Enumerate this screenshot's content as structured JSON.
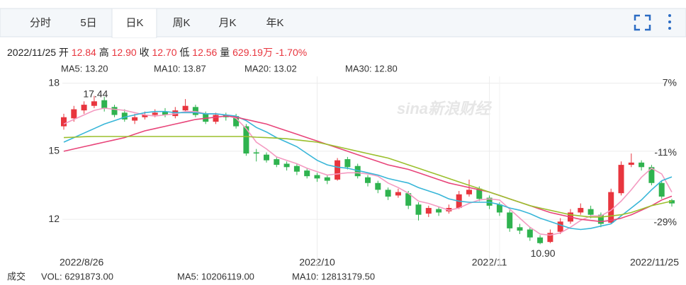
{
  "tabs": [
    "分时",
    "5日",
    "日K",
    "周K",
    "月K",
    "年K"
  ],
  "info": {
    "date": "2022/11/25",
    "items": [
      {
        "label": "开",
        "value": "12.84"
      },
      {
        "label": "高",
        "value": "12.90"
      },
      {
        "label": "收",
        "value": "12.70"
      },
      {
        "label": "低",
        "value": "12.56"
      },
      {
        "label": "量",
        "value": "629.19万"
      }
    ],
    "change": "-1.70%"
  },
  "watermark": "sina新浪财经",
  "footer": [
    {
      "text": "成交",
      "color": "#999999"
    },
    {
      "text": "VOL: 6291873.00",
      "color": "#999999"
    },
    {
      "text": "MA5: 10206119.00",
      "color": "#f49ac1"
    },
    {
      "text": "MA10: 12813179.50",
      "color": "#38b6d8"
    }
  ],
  "chart_data": {
    "type": "candlestick",
    "categories": [
      "2022/8/26",
      null,
      null,
      null,
      null,
      null,
      null,
      null,
      null,
      null,
      null,
      null,
      null,
      null,
      null,
      null,
      null,
      null,
      null,
      null,
      null,
      null,
      null,
      null,
      null,
      "2022/10",
      null,
      null,
      null,
      null,
      null,
      null,
      null,
      null,
      null,
      null,
      null,
      null,
      null,
      null,
      null,
      null,
      "2022/11",
      null,
      null,
      null,
      null,
      null,
      null,
      null,
      null,
      null,
      null,
      null,
      null,
      null,
      null,
      null,
      null,
      null,
      "2022/11/25"
    ],
    "open": [
      16.1,
      16.45,
      16.8,
      17.0,
      17.25,
      16.95,
      16.7,
      16.35,
      16.5,
      16.6,
      16.75,
      16.55,
      16.8,
      16.95,
      16.65,
      16.3,
      16.6,
      16.55,
      16.1,
      14.95,
      14.85,
      14.65,
      14.45,
      14.35,
      14.15,
      13.95,
      13.85,
      13.75,
      14.65,
      14.35,
      13.85,
      13.6,
      13.3,
      13.05,
      13.15,
      12.65,
      12.25,
      12.45,
      12.35,
      12.5,
      13.1,
      13.35,
      12.95,
      12.65,
      12.3,
      11.65,
      11.55,
      11.2,
      11.0,
      11.45,
      11.9,
      12.3,
      12.45,
      12.2,
      11.85,
      13.15,
      14.4,
      14.5,
      14.3,
      13.6,
      12.84
    ],
    "high": [
      16.65,
      17.0,
      17.2,
      17.44,
      17.4,
      17.05,
      16.85,
      16.65,
      16.75,
      16.85,
      16.9,
      16.95,
      17.3,
      17.05,
      16.75,
      16.7,
      16.7,
      16.65,
      16.2,
      15.1,
      14.95,
      14.75,
      14.55,
      14.45,
      14.25,
      14.05,
      13.95,
      14.7,
      14.75,
      14.45,
      13.95,
      13.7,
      13.4,
      13.35,
      13.25,
      12.75,
      12.6,
      12.55,
      12.65,
      13.25,
      13.75,
      13.45,
      13.05,
      12.75,
      12.4,
      11.8,
      11.65,
      11.3,
      11.55,
      12.05,
      12.45,
      12.7,
      12.6,
      12.3,
      13.35,
      14.55,
      14.9,
      14.6,
      14.4,
      13.7,
      12.9
    ],
    "low": [
      15.95,
      16.3,
      16.65,
      16.9,
      16.75,
      16.5,
      16.3,
      16.2,
      16.4,
      16.5,
      16.5,
      16.45,
      16.7,
      16.5,
      16.2,
      16.2,
      16.35,
      16.0,
      14.8,
      14.55,
      14.5,
      14.3,
      14.15,
      13.95,
      13.8,
      13.65,
      13.55,
      13.7,
      14.2,
      13.8,
      13.45,
      13.15,
      12.85,
      12.95,
      12.45,
      11.95,
      12.1,
      12.15,
      12.25,
      12.45,
      13.0,
      12.8,
      12.45,
      12.15,
      11.45,
      11.35,
      11.05,
      10.9,
      10.95,
      11.35,
      11.8,
      12.2,
      12.05,
      11.65,
      11.8,
      13.05,
      14.3,
      14.15,
      13.5,
      12.9,
      12.56
    ],
    "close": [
      16.5,
      16.85,
      17.05,
      17.2,
      16.9,
      16.6,
      16.4,
      16.5,
      16.6,
      16.7,
      16.6,
      16.8,
      17.0,
      16.6,
      16.3,
      16.6,
      16.5,
      16.1,
      14.9,
      14.9,
      14.6,
      14.4,
      14.3,
      14.1,
      13.9,
      13.8,
      13.7,
      14.6,
      14.3,
      13.9,
      13.6,
      13.3,
      13.0,
      13.2,
      12.6,
      12.2,
      12.5,
      12.3,
      12.5,
      13.1,
      13.3,
      12.9,
      12.6,
      12.3,
      11.6,
      11.5,
      11.2,
      10.95,
      11.4,
      11.9,
      12.3,
      12.5,
      12.2,
      11.8,
      13.2,
      14.4,
      14.5,
      14.3,
      13.6,
      13.0,
      12.7
    ],
    "up_color": "#e8353e",
    "down_color": "#2fb34f",
    "series": [
      {
        "name": "MA5: 13.20",
        "color": "#f49ac1",
        "values": [
          16.2,
          16.4,
          16.6,
          16.8,
          16.9,
          16.85,
          16.8,
          16.7,
          16.6,
          16.55,
          16.6,
          16.65,
          16.75,
          16.75,
          16.65,
          16.65,
          16.6,
          16.45,
          16.0,
          15.4,
          15.1,
          14.75,
          14.6,
          14.45,
          14.25,
          14.1,
          13.95,
          14.0,
          14.05,
          14.05,
          14.0,
          13.9,
          13.6,
          13.4,
          13.15,
          12.8,
          12.7,
          12.55,
          12.4,
          12.5,
          12.7,
          12.85,
          12.9,
          12.85,
          12.45,
          12.05,
          11.65,
          11.35,
          11.3,
          11.4,
          11.65,
          11.95,
          12.15,
          12.15,
          12.4,
          12.8,
          13.3,
          13.85,
          14.25,
          14.0,
          13.2
        ]
      },
      {
        "name": "MA10: 13.87",
        "color": "#38b6d8",
        "values": [
          15.4,
          15.6,
          15.8,
          16.0,
          16.2,
          16.35,
          16.5,
          16.6,
          16.7,
          16.75,
          16.75,
          16.7,
          16.7,
          16.7,
          16.65,
          16.65,
          16.6,
          16.55,
          16.35,
          16.05,
          15.85,
          15.6,
          15.4,
          15.2,
          14.9,
          14.6,
          14.4,
          14.3,
          14.25,
          14.15,
          14.05,
          13.95,
          13.8,
          13.7,
          13.6,
          13.4,
          13.25,
          13.1,
          12.9,
          12.8,
          12.75,
          12.75,
          12.75,
          12.65,
          12.5,
          12.4,
          12.25,
          12.05,
          11.9,
          11.75,
          11.6,
          11.55,
          11.6,
          11.7,
          11.8,
          12.15,
          12.5,
          12.85,
          13.3,
          13.7,
          13.87
        ]
      },
      {
        "name": "MA20: 13.02",
        "color": "#e8457a",
        "values": [
          15.0,
          15.1,
          15.2,
          15.3,
          15.4,
          15.5,
          15.6,
          15.75,
          15.9,
          16.0,
          16.1,
          16.2,
          16.3,
          16.4,
          16.45,
          16.5,
          16.55,
          16.5,
          16.4,
          16.3,
          16.2,
          16.05,
          15.9,
          15.75,
          15.6,
          15.45,
          15.3,
          15.15,
          15.0,
          14.85,
          14.7,
          14.55,
          14.4,
          14.3,
          14.2,
          14.05,
          13.9,
          13.75,
          13.6,
          13.5,
          13.4,
          13.3,
          13.2,
          13.05,
          12.9,
          12.75,
          12.6,
          12.45,
          12.3,
          12.2,
          12.1,
          12.0,
          11.95,
          11.9,
          11.95,
          12.05,
          12.2,
          12.4,
          12.6,
          12.85,
          13.02
        ]
      },
      {
        "name": "MA30: 12.80",
        "color": "#9bbf2d",
        "values": [
          15.6,
          15.62,
          15.64,
          15.65,
          15.65,
          15.65,
          15.65,
          15.65,
          15.65,
          15.65,
          15.65,
          15.65,
          15.65,
          15.65,
          15.65,
          15.65,
          15.65,
          15.65,
          15.65,
          15.62,
          15.6,
          15.58,
          15.55,
          15.5,
          15.45,
          15.4,
          15.3,
          15.2,
          15.1,
          15.0,
          14.9,
          14.8,
          14.7,
          14.55,
          14.4,
          14.25,
          14.1,
          13.95,
          13.8,
          13.65,
          13.5,
          13.35,
          13.2,
          13.05,
          12.9,
          12.75,
          12.6,
          12.5,
          12.4,
          12.3,
          12.2,
          12.15,
          12.1,
          12.1,
          12.15,
          12.2,
          12.3,
          12.45,
          12.6,
          12.7,
          12.8
        ]
      }
    ],
    "max_label": "17.44",
    "min_label": "10.90",
    "ylim": [
      10.6,
      18.3
    ],
    "yticks": [
      12,
      15,
      18
    ],
    "y2lim": [
      -36.3,
      8.83
    ],
    "y2ticks": [
      {
        "value": 7,
        "label": "7%"
      },
      {
        "value": -11,
        "label": "-11%"
      },
      {
        "value": -29,
        "label": "-29%"
      }
    ],
    "grid": true
  }
}
